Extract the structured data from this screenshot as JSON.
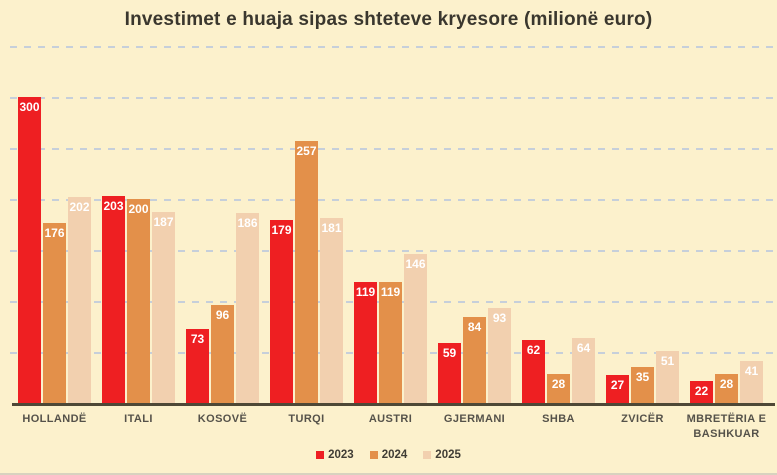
{
  "title": "Investimet e huaja sipas shteteve kryesore (milionë euro)",
  "colors": {
    "background": "#fcf1cc",
    "gridline": "#bdc9dd",
    "axis": "#4e4836",
    "title_text": "#3a372e",
    "category_text": "#55524a",
    "value_text": "#ffffff",
    "series": {
      "2023": "#ee1f22",
      "2024": "#e3904a",
      "2025": "#f2d0af"
    }
  },
  "chart_data": {
    "type": "bar",
    "title": "Investimet e huaja sipas shteteve kryesore (milionë euro)",
    "xlabel": "",
    "ylabel": "",
    "categories": [
      "HOLLANDË",
      "ITALI",
      "KOSOVË",
      "TURQI",
      "AUSTRI",
      "GJERMANI",
      "SHBA",
      "ZVICËR",
      "MBRETËRIA E BASHKUAR"
    ],
    "series": [
      {
        "name": "2023",
        "values": [
          300,
          203,
          73,
          179,
          119,
          59,
          62,
          27,
          22
        ]
      },
      {
        "name": "2024",
        "values": [
          176,
          200,
          96,
          257,
          119,
          84,
          28,
          35,
          28
        ]
      },
      {
        "name": "2025",
        "values": [
          202,
          187,
          186,
          181,
          146,
          93,
          64,
          51,
          41
        ]
      }
    ],
    "ylim": [
      0,
      350
    ],
    "gridline_step": 50,
    "grid": true,
    "y_axis_labels_visible": false,
    "value_labels": true,
    "legend_position": "bottom"
  },
  "legend": {
    "items": [
      {
        "label": "2023",
        "color": "#ee1f22"
      },
      {
        "label": "2024",
        "color": "#e3904a"
      },
      {
        "label": "2025",
        "color": "#f2d0af"
      }
    ]
  }
}
